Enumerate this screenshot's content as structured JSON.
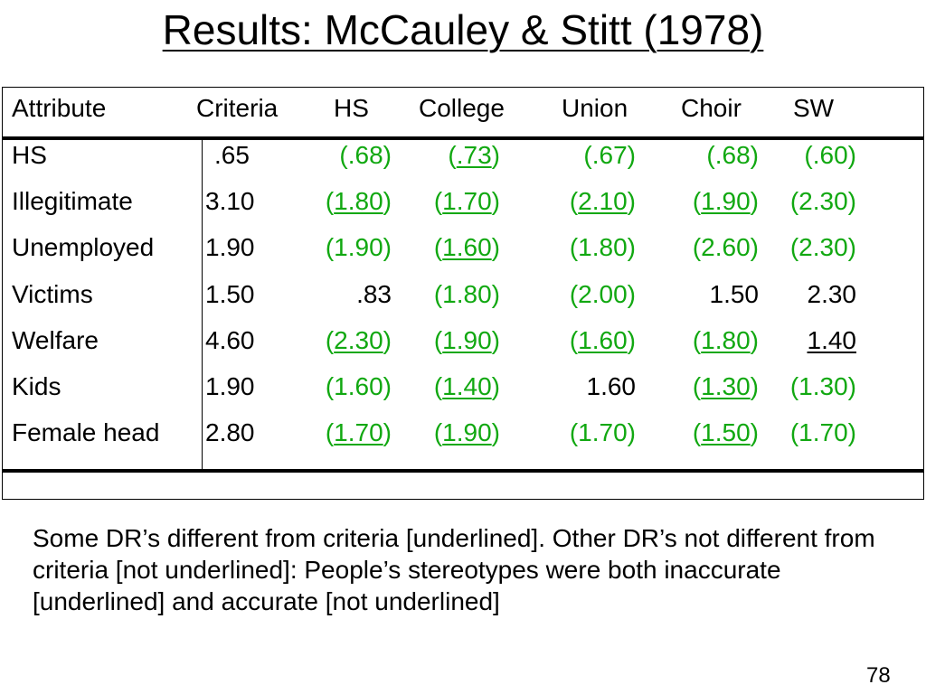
{
  "slide": {
    "title": "Results: McCauley & Stitt (1978)",
    "page_number": "78",
    "note": "Some DR’s different from criteria [underlined]. Other DR’s not different from criteria [not underlined]: People’s stereotypes were both inaccurate [underlined] and accurate [not underlined]"
  },
  "colors": {
    "highlight": "#11a811",
    "text": "#000000"
  },
  "table": {
    "headers": [
      "Attribute",
      "Criteria",
      "HS",
      "College",
      "Union",
      "Choir",
      "SW"
    ],
    "rows": [
      {
        "attribute": "HS",
        "criteria": ".65",
        "cells": [
          {
            "p": "(",
            "v": ".68",
            "s": ")",
            "green": true,
            "ul": false
          },
          {
            "p": "(",
            "v": ".73",
            "s": ")",
            "green": true,
            "ul": true
          },
          {
            "p": "(",
            "v": ".67",
            "s": ")",
            "green": true,
            "ul": false
          },
          {
            "p": "(",
            "v": ".68",
            "s": ")",
            "green": true,
            "ul": false
          },
          {
            "p": "(",
            "v": ".60",
            "s": ")",
            "green": true,
            "ul": false
          }
        ]
      },
      {
        "attribute": "Illegitimate",
        "criteria": "3.10",
        "cells": [
          {
            "p": "(",
            "v": "1.80",
            "s": ")",
            "green": true,
            "ul": true
          },
          {
            "p": "(",
            "v": "1.70",
            "s": ")",
            "green": true,
            "ul": true
          },
          {
            "p": "(",
            "v": "2.10",
            "s": ")",
            "green": true,
            "ul": true
          },
          {
            "p": "(",
            "v": "1.90",
            "s": ")",
            "green": true,
            "ul": true
          },
          {
            "p": "(",
            "v": "2.30",
            "s": ")",
            "green": true,
            "ul": false
          }
        ]
      },
      {
        "attribute": "Unemployed",
        "criteria": "1.90",
        "cells": [
          {
            "p": "(",
            "v": "1.90",
            "s": ")",
            "green": true,
            "ul": false
          },
          {
            "p": "(",
            "v": "1.60",
            "s": ")",
            "green": true,
            "ul": true
          },
          {
            "p": "(",
            "v": "1.80",
            "s": ")",
            "green": true,
            "ul": false
          },
          {
            "p": "(",
            "v": "2.60",
            "s": ")",
            "green": true,
            "ul": false
          },
          {
            "p": "(",
            "v": "2.30",
            "s": ")",
            "green": true,
            "ul": false
          }
        ]
      },
      {
        "attribute": "Victims",
        "criteria": "1.50",
        "cells": [
          {
            "p": "",
            "v": ".83",
            "s": "",
            "green": false,
            "ul": false
          },
          {
            "p": "(",
            "v": "1.80",
            "s": ")",
            "green": true,
            "ul": false
          },
          {
            "p": "(",
            "v": "2.00",
            "s": ")",
            "green": true,
            "ul": false
          },
          {
            "p": "",
            "v": "1.50",
            "s": "",
            "green": false,
            "ul": false
          },
          {
            "p": "",
            "v": "2.30",
            "s": "",
            "green": false,
            "ul": false
          }
        ]
      },
      {
        "attribute": "Welfare",
        "criteria": "4.60",
        "cells": [
          {
            "p": "(",
            "v": "2.30",
            "s": ")",
            "green": true,
            "ul": true
          },
          {
            "p": "(",
            "v": "1.90",
            "s": ")",
            "green": true,
            "ul": true
          },
          {
            "p": "(",
            "v": "1.60",
            "s": ")",
            "green": true,
            "ul": true
          },
          {
            "p": "(",
            "v": "1.80",
            "s": ")",
            "green": true,
            "ul": true
          },
          {
            "p": "",
            "v": "1.40",
            "s": "",
            "green": false,
            "ul": true
          }
        ]
      },
      {
        "attribute": "Kids",
        "criteria": "1.90",
        "cells": [
          {
            "p": "(",
            "v": "1.60",
            "s": ")",
            "green": true,
            "ul": false
          },
          {
            "p": "(",
            "v": "1.40",
            "s": ")",
            "green": true,
            "ul": true
          },
          {
            "p": "",
            "v": "1.60",
            "s": "",
            "green": false,
            "ul": false
          },
          {
            "p": "(",
            "v": "1.30",
            "s": ")",
            "green": true,
            "ul": true
          },
          {
            "p": "(",
            "v": "1.30",
            "s": ")",
            "green": true,
            "ul": false
          }
        ]
      },
      {
        "attribute": "Female head",
        "criteria": "2.80",
        "cells": [
          {
            "p": "(",
            "v": "1.70",
            "s": ")",
            "green": true,
            "ul": true
          },
          {
            "p": "(",
            "v": "1.90",
            "s": ")",
            "green": true,
            "ul": true
          },
          {
            "p": "(",
            "v": "1.70",
            "s": ")",
            "green": true,
            "ul": false
          },
          {
            "p": "(",
            "v": "1.50",
            "s": ")",
            "green": true,
            "ul": true
          },
          {
            "p": "(",
            "v": "1.70",
            "s": ")",
            "green": true,
            "ul": false
          }
        ]
      }
    ]
  }
}
